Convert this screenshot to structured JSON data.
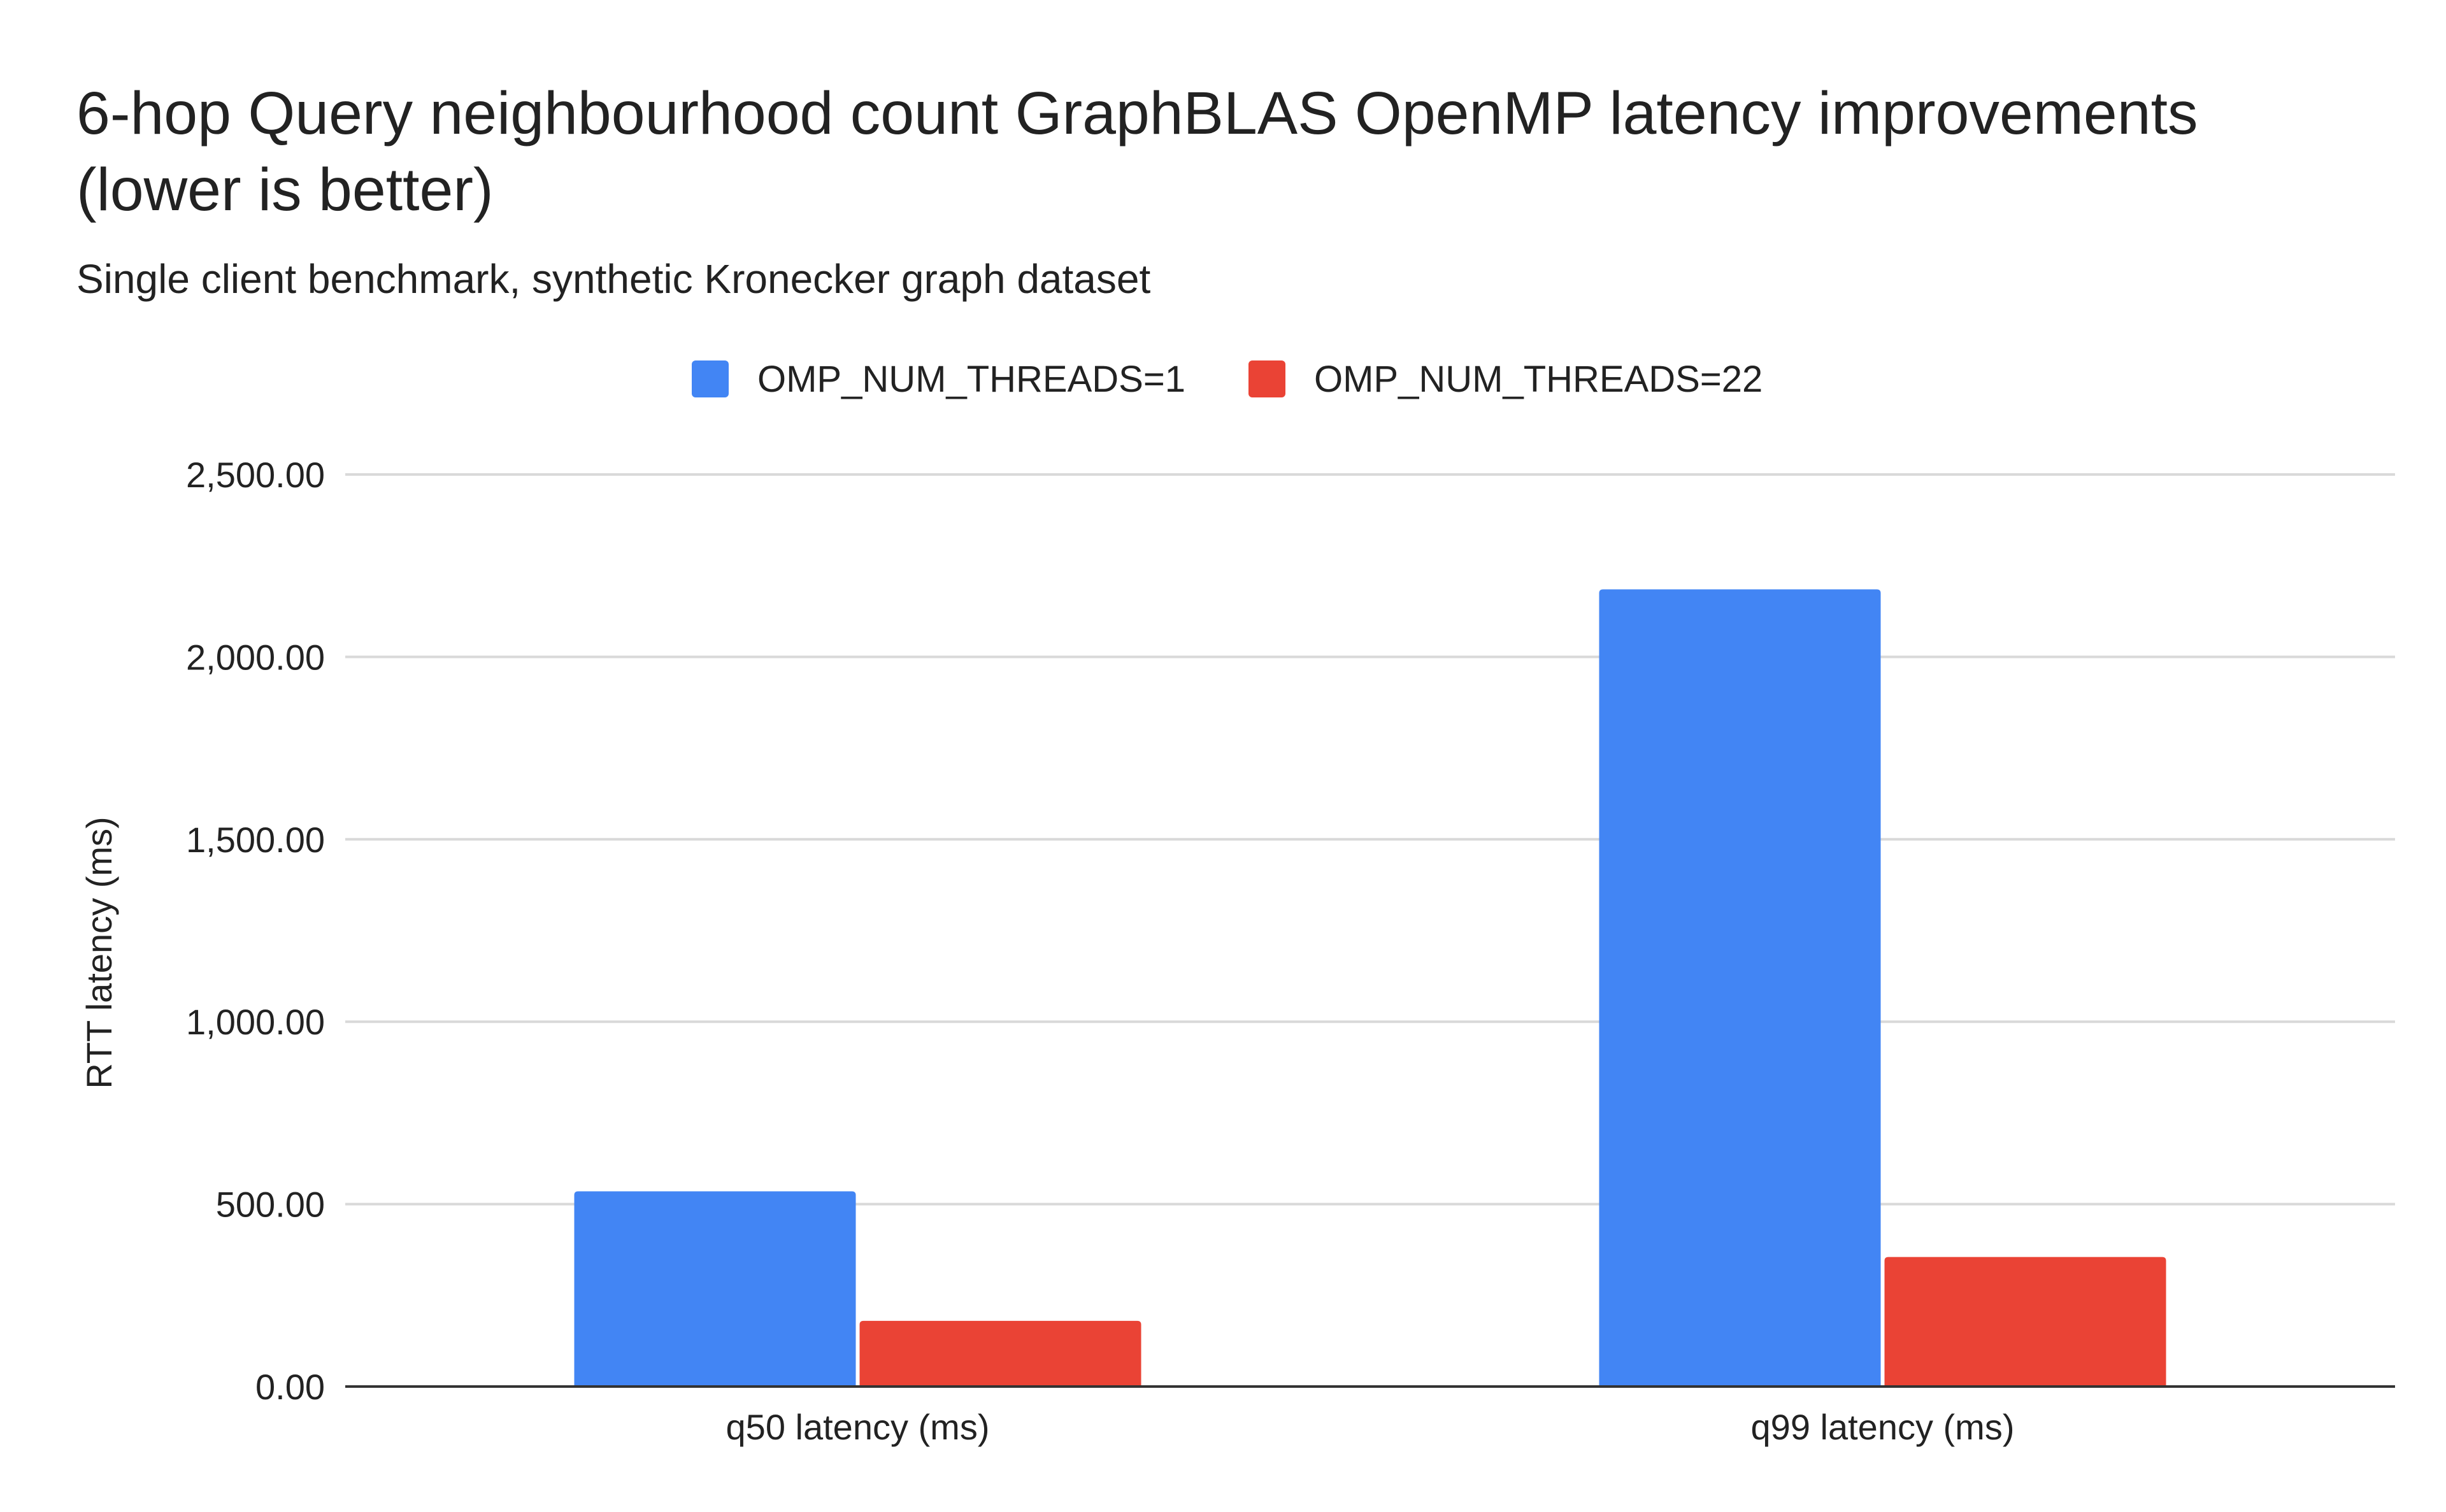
{
  "chart_data": {
    "type": "bar",
    "title_lines": [
      "6-hop Query neighbourhood count GraphBLAS OpenMP latency improvements",
      "(lower is better)"
    ],
    "subtitle": "Single client benchmark, synthetic Kronecker graph dataset",
    "xlabel": "",
    "ylabel": "RTT latency (ms)",
    "categories": [
      "q50 latency (ms)",
      "q99 latency (ms)"
    ],
    "series": [
      {
        "name": "OMP_NUM_THREADS=1",
        "color": "#4285f4",
        "values": [
          535,
          2185
        ]
      },
      {
        "name": "OMP_NUM_THREADS=22",
        "color": "#ea4335",
        "values": [
          180,
          355
        ]
      }
    ],
    "ylim": [
      0,
      2500
    ],
    "yticks": [
      0,
      500,
      1000,
      1500,
      2000,
      2500
    ],
    "ytick_labels": [
      "0.00",
      "500.00",
      "1,000.00",
      "1,500.00",
      "2,000.00",
      "2,500.00"
    ],
    "grid": true,
    "legend_position": "top-center"
  }
}
